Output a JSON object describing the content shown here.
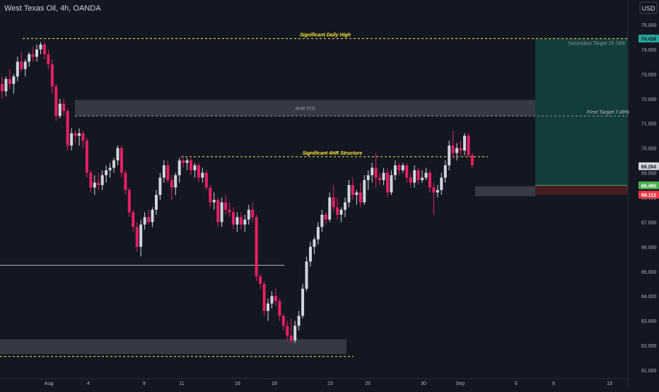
{
  "header": {
    "symbol_title": "West Texas Oil, 4h, OANDA",
    "currency": "USD"
  },
  "chart_data": {
    "type": "candlestick",
    "symbol": "West Texas Oil",
    "timeframe": "4h",
    "broker": "OANDA",
    "ylim": [
      60.8,
      75.2
    ],
    "y_ticks": [
      "61.000",
      "62.000",
      "63.000",
      "64.000",
      "65.000",
      "66.000",
      "67.000",
      "68.000",
      "69.000",
      "70.000",
      "71.000",
      "72.000",
      "73.000",
      "74.000",
      "75.000"
    ],
    "x_ticks": [
      {
        "label": "Aug",
        "index": 12
      },
      {
        "label": "4",
        "index": 21
      },
      {
        "label": "9",
        "index": 36
      },
      {
        "label": "11",
        "index": 45
      },
      {
        "label": "16",
        "index": 59
      },
      {
        "label": "18",
        "index": 69
      },
      {
        "label": "23",
        "index": 83
      },
      {
        "label": "25",
        "index": 92
      },
      {
        "label": "30",
        "index": 106
      },
      {
        "label": "Sep",
        "index": 115
      },
      {
        "label": "6",
        "index": 129
      },
      {
        "label": "8",
        "index": 139
      },
      {
        "label": "13",
        "index": 148
      }
    ],
    "candles": [
      [
        72.6,
        72.9,
        72.0,
        72.3
      ],
      [
        72.3,
        72.9,
        72.1,
        72.8
      ],
      [
        72.8,
        73.2,
        72.4,
        72.6
      ],
      [
        72.6,
        73.0,
        72.2,
        72.9
      ],
      [
        72.9,
        73.7,
        72.7,
        73.5
      ],
      [
        73.5,
        73.9,
        73.1,
        73.2
      ],
      [
        73.2,
        73.6,
        72.9,
        73.5
      ],
      [
        73.5,
        73.9,
        73.3,
        73.8
      ],
      [
        73.8,
        74.1,
        73.5,
        73.7
      ],
      [
        73.7,
        74.2,
        73.5,
        74.0
      ],
      [
        74.0,
        74.3,
        73.8,
        74.2
      ],
      [
        74.2,
        74.3,
        73.6,
        73.8
      ],
      [
        73.8,
        74.0,
        73.2,
        73.4
      ],
      [
        73.4,
        73.6,
        72.2,
        72.5
      ],
      [
        72.5,
        72.6,
        71.1,
        71.3
      ],
      [
        71.3,
        72.0,
        71.2,
        71.8
      ],
      [
        71.8,
        72.0,
        71.3,
        71.5
      ],
      [
        71.5,
        71.6,
        69.9,
        70.1
      ],
      [
        70.1,
        70.8,
        69.9,
        70.6
      ],
      [
        70.6,
        70.7,
        70.2,
        70.5
      ],
      [
        70.5,
        70.8,
        70.1,
        70.6
      ],
      [
        70.6,
        70.7,
        70.0,
        70.3
      ],
      [
        70.3,
        70.4,
        68.8,
        69.0
      ],
      [
        69.0,
        69.1,
        68.2,
        68.4
      ],
      [
        68.4,
        68.9,
        68.1,
        68.6
      ],
      [
        68.6,
        69.0,
        68.3,
        68.5
      ],
      [
        68.5,
        69.1,
        68.3,
        68.9
      ],
      [
        68.9,
        69.3,
        68.6,
        69.1
      ],
      [
        69.1,
        69.4,
        68.8,
        69.2
      ],
      [
        69.2,
        69.6,
        69.0,
        69.5
      ],
      [
        69.5,
        70.1,
        69.3,
        70.0
      ],
      [
        70.0,
        70.1,
        68.8,
        69.0
      ],
      [
        69.0,
        69.1,
        68.1,
        68.3
      ],
      [
        68.3,
        68.4,
        67.2,
        67.4
      ],
      [
        67.4,
        67.5,
        66.6,
        66.8
      ],
      [
        66.8,
        67.0,
        65.8,
        66.0
      ],
      [
        66.0,
        67.1,
        65.6,
        66.9
      ],
      [
        66.9,
        67.4,
        66.7,
        67.2
      ],
      [
        67.2,
        67.5,
        66.9,
        67.0
      ],
      [
        67.0,
        67.6,
        66.8,
        67.5
      ],
      [
        67.5,
        68.3,
        67.3,
        68.1
      ],
      [
        68.1,
        69.0,
        67.9,
        68.8
      ],
      [
        68.8,
        69.5,
        68.6,
        69.3
      ],
      [
        69.3,
        69.5,
        68.6,
        68.7
      ],
      [
        68.7,
        68.9,
        67.9,
        68.4
      ],
      [
        68.4,
        69.0,
        68.1,
        68.9
      ],
      [
        68.9,
        69.6,
        68.6,
        69.5
      ],
      [
        69.5,
        69.7,
        69.2,
        69.4
      ],
      [
        69.4,
        69.6,
        69.1,
        69.5
      ],
      [
        69.5,
        69.6,
        68.9,
        69.1
      ],
      [
        69.1,
        69.4,
        68.8,
        69.3
      ],
      [
        69.3,
        69.4,
        68.6,
        68.8
      ],
      [
        68.8,
        69.2,
        68.6,
        69.0
      ],
      [
        69.0,
        69.1,
        68.3,
        68.4
      ],
      [
        68.4,
        68.5,
        67.6,
        67.8
      ],
      [
        67.8,
        68.2,
        67.5,
        67.9
      ],
      [
        67.9,
        68.0,
        66.8,
        67.0
      ],
      [
        67.0,
        68.0,
        66.8,
        67.8
      ],
      [
        67.8,
        68.1,
        67.3,
        67.5
      ],
      [
        67.5,
        67.8,
        67.2,
        67.4
      ],
      [
        67.4,
        67.6,
        66.7,
        66.9
      ],
      [
        66.9,
        67.4,
        66.6,
        67.2
      ],
      [
        67.2,
        67.4,
        66.7,
        66.9
      ],
      [
        66.9,
        67.3,
        66.6,
        67.1
      ],
      [
        67.1,
        67.7,
        66.9,
        67.5
      ],
      [
        67.5,
        67.8,
        67.0,
        67.2
      ],
      [
        67.2,
        67.3,
        64.6,
        64.8
      ],
      [
        64.8,
        64.9,
        64.3,
        64.5
      ],
      [
        64.5,
        64.6,
        63.2,
        63.4
      ],
      [
        63.4,
        63.9,
        63.0,
        63.7
      ],
      [
        63.7,
        64.2,
        63.5,
        64.0
      ],
      [
        64.0,
        64.3,
        63.6,
        63.8
      ],
      [
        63.8,
        63.9,
        63.0,
        63.2
      ],
      [
        63.2,
        63.3,
        62.6,
        62.8
      ],
      [
        62.8,
        63.0,
        62.2,
        62.4
      ],
      [
        62.4,
        63.1,
        62.1,
        62.2
      ],
      [
        62.2,
        63.0,
        62.1,
        62.8
      ],
      [
        62.8,
        63.4,
        62.6,
        63.2
      ],
      [
        63.2,
        64.5,
        63.1,
        64.3
      ],
      [
        64.3,
        65.6,
        64.2,
        65.4
      ],
      [
        65.4,
        66.2,
        65.2,
        66.0
      ],
      [
        66.0,
        66.4,
        65.7,
        66.3
      ],
      [
        66.3,
        67.0,
        66.1,
        66.8
      ],
      [
        66.8,
        67.5,
        66.6,
        67.3
      ],
      [
        67.3,
        67.4,
        66.9,
        67.1
      ],
      [
        67.1,
        68.2,
        67.0,
        68.0
      ],
      [
        68.0,
        68.5,
        67.4,
        67.6
      ],
      [
        67.6,
        68.0,
        67.1,
        67.3
      ],
      [
        67.3,
        67.6,
        67.0,
        67.5
      ],
      [
        67.5,
        68.0,
        67.2,
        67.8
      ],
      [
        67.8,
        68.7,
        67.6,
        68.5
      ],
      [
        68.5,
        68.8,
        67.9,
        68.1
      ],
      [
        68.1,
        68.3,
        67.7,
        68.2
      ],
      [
        68.2,
        68.6,
        67.6,
        67.8
      ],
      [
        67.8,
        68.9,
        67.7,
        68.7
      ],
      [
        68.7,
        69.1,
        68.3,
        68.9
      ],
      [
        68.9,
        69.4,
        68.6,
        69.2
      ],
      [
        69.2,
        69.8,
        68.4,
        68.8
      ],
      [
        68.8,
        69.0,
        68.5,
        68.7
      ],
      [
        68.7,
        69.2,
        68.5,
        69.0
      ],
      [
        69.0,
        69.2,
        68.0,
        68.2
      ],
      [
        68.2,
        69.1,
        68.1,
        68.9
      ],
      [
        68.9,
        69.5,
        68.7,
        69.3
      ],
      [
        69.3,
        69.4,
        68.9,
        69.1
      ],
      [
        69.1,
        69.4,
        69.0,
        69.3
      ],
      [
        69.3,
        69.4,
        68.6,
        68.8
      ],
      [
        68.8,
        69.0,
        68.4,
        68.6
      ],
      [
        68.6,
        69.3,
        68.4,
        69.1
      ],
      [
        69.1,
        69.2,
        68.5,
        68.7
      ],
      [
        68.7,
        69.1,
        68.6,
        68.8
      ],
      [
        68.8,
        69.2,
        68.7,
        69.0
      ],
      [
        69.0,
        69.1,
        68.2,
        68.4
      ],
      [
        68.4,
        68.6,
        67.3,
        68.2
      ],
      [
        68.2,
        68.5,
        68.0,
        68.3
      ],
      [
        68.3,
        69.0,
        68.1,
        68.8
      ],
      [
        68.8,
        69.5,
        68.6,
        69.3
      ],
      [
        69.3,
        70.3,
        69.1,
        70.1
      ],
      [
        70.1,
        70.7,
        69.6,
        69.8
      ],
      [
        69.8,
        70.2,
        69.5,
        70.0
      ],
      [
        70.0,
        70.3,
        69.7,
        69.9
      ],
      [
        69.9,
        70.6,
        69.7,
        70.5
      ],
      [
        70.5,
        70.6,
        69.6,
        69.7
      ],
      [
        69.7,
        69.8,
        69.2,
        69.3
      ]
    ],
    "levels": [
      {
        "label": "Significant Daily High",
        "price": 74.438
      },
      {
        "label": "First Target 7.49%",
        "price": 71.3
      },
      {
        "label": "Significant 4HR Structure",
        "price": 69.65
      }
    ],
    "zones": [
      {
        "label": "4HR POI",
        "top": 71.95,
        "bottom": 71.3
      },
      {
        "label": "",
        "top": 62.25,
        "bottom": 61.65
      }
    ],
    "other_lines": [
      {
        "price": 65.25
      },
      {
        "price": 61.55
      }
    ],
    "position": {
      "entry": 68.49,
      "target": 74.438,
      "stop": 68.112,
      "target_label": "Secondary Target 15.74%"
    },
    "price_labels": [
      {
        "text": "74.438",
        "price": 74.438,
        "bg": "#26a69a",
        "fg": "#131722"
      },
      {
        "text": "69.264",
        "price": 69.264,
        "bg": "#d1d4dc",
        "fg": "#131722"
      },
      {
        "text": "68.490",
        "price": 68.49,
        "bg": "#4caf50",
        "fg": "#ffffff"
      },
      {
        "text": "68.112",
        "price": 68.112,
        "bg": "#f23645",
        "fg": "#ffffff"
      }
    ],
    "colors": {
      "background": "#131722",
      "up": "#d1d4dc",
      "down": "#e91e63",
      "level": "#ffeb3b",
      "target_zone": "#123f3c",
      "stop_zone": "#4a1c24",
      "zone": "#3b3f4a",
      "axis_text": "#b2b5be"
    }
  }
}
